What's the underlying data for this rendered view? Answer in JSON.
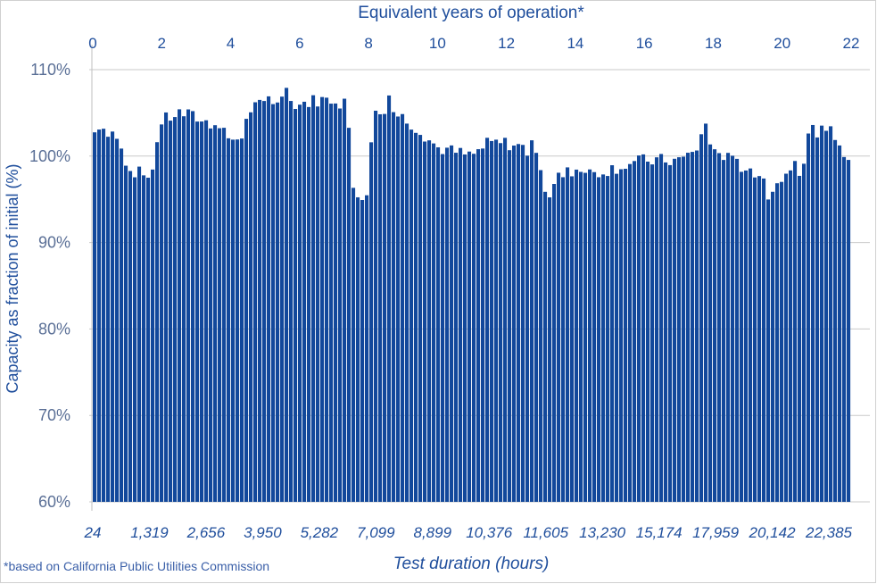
{
  "chart_data": {
    "type": "bar",
    "title": "",
    "x_top_label": "Equivalent years of operation*",
    "x_top_ticks": [
      "0",
      "2",
      "4",
      "6",
      "8",
      "10",
      "12",
      "14",
      "16",
      "18",
      "20",
      "22"
    ],
    "xlabel": "Test duration (hours)",
    "x_bottom_ticks": [
      "24",
      "1,319",
      "2,656",
      "3,950",
      "5,282",
      "7,099",
      "8,899",
      "10,376",
      "11,605",
      "13,230",
      "15,174",
      "17,959",
      "20,142",
      "22,385"
    ],
    "ylabel": "Capacity as fraction of initial (%)",
    "y_ticks": [
      "60%",
      "70%",
      "80%",
      "90%",
      "100%",
      "110%"
    ],
    "ylim": [
      60,
      110
    ],
    "grid": true,
    "legend": "none",
    "bar_color": "#12489b",
    "axis_text_color": "#1f4e9c",
    "profile_years": [
      0,
      0.1,
      0.4,
      0.7,
      1.0,
      1.2,
      1.5,
      1.7,
      2.0,
      2.5,
      3.0,
      3.5,
      4.0,
      4.3,
      4.6,
      5.0,
      5.5,
      6.0,
      6.5,
      7.0,
      7.4,
      7.6,
      7.8,
      8.0,
      8.15,
      8.3,
      8.6,
      9.0,
      9.5,
      10.0,
      10.5,
      11.0,
      11.5,
      12.0,
      12.5,
      13.0,
      13.2,
      13.5,
      14.0,
      14.5,
      15.0,
      15.5,
      16.0,
      16.5,
      17.0,
      17.5,
      17.8,
      17.9,
      18.2,
      18.5,
      19.0,
      19.3,
      19.6,
      20.0,
      20.3,
      20.6,
      20.8,
      21.0,
      21.3,
      21.6,
      22.0
    ],
    "profile_capacity_pct": [
      100.5,
      104.0,
      103.0,
      102.5,
      98.5,
      97.5,
      97.0,
      98.0,
      104.0,
      105.0,
      104.5,
      103.5,
      102.0,
      102.0,
      105.5,
      106.0,
      106.5,
      106.0,
      106.5,
      106.5,
      106.0,
      95.5,
      95.0,
      96.0,
      106.5,
      105.5,
      105.5,
      104.5,
      103.0,
      101.0,
      100.5,
      100.0,
      101.5,
      101.5,
      101.0,
      99.0,
      95.0,
      97.5,
      98.5,
      98.0,
      98.5,
      99.0,
      99.5,
      99.5,
      99.5,
      100.5,
      104.0,
      101.0,
      100.5,
      99.5,
      98.5,
      97.5,
      95.5,
      97.5,
      98.0,
      98.5,
      103.0,
      103.0,
      102.5,
      101.5,
      99.0
    ],
    "footnote": "*based on California Public Utilities Commission"
  }
}
